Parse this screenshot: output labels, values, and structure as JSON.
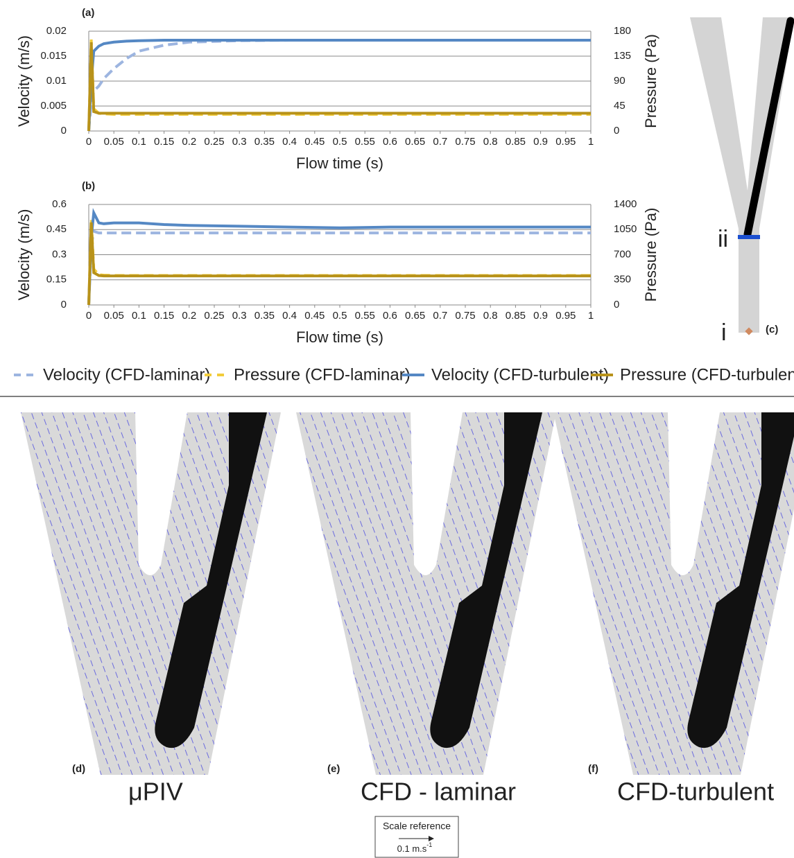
{
  "chart_data": [
    {
      "type": "line",
      "panel_label": "(a)",
      "x_label": "Flow time (s)",
      "y_label": "Velocity (m/s)",
      "y2_label": "Pressure (Pa)",
      "x": [
        0,
        0.005,
        0.01,
        0.02,
        0.03,
        0.05,
        0.075,
        0.1,
        0.15,
        0.2,
        0.3,
        0.4,
        0.5,
        0.6,
        0.7,
        0.8,
        0.9,
        1
      ],
      "xlim": [
        0,
        1
      ],
      "xticks": [
        0,
        0.05,
        0.1,
        0.15,
        0.2,
        0.25,
        0.3,
        0.35,
        0.4,
        0.45,
        0.5,
        0.55,
        0.6,
        0.65,
        0.7,
        0.75,
        0.8,
        0.85,
        0.9,
        0.95,
        1
      ],
      "ylim": [
        0,
        0.02
      ],
      "yticks": [
        0,
        0.005,
        0.01,
        0.015,
        0.02
      ],
      "y2lim": [
        0,
        180
      ],
      "y2ticks": [
        0,
        45,
        90,
        135,
        180
      ],
      "grid": true,
      "series": [
        {
          "name": "Velocity (CFD-laminar)",
          "color": "#9db5e0",
          "line_style": "dashed",
          "values": [
            0,
            0.006,
            0.008,
            0.009,
            0.0105,
            0.0125,
            0.0145,
            0.016,
            0.0172,
            0.0178,
            0.0181,
            0.0182,
            0.0182,
            0.0182,
            0.0182,
            0.0182,
            0.0182,
            0.0182
          ]
        },
        {
          "name": "Pressure (CFD-laminar)",
          "color": "#f2cc3a",
          "line_style": "dashed",
          "axis": "y2",
          "values": [
            0,
            165,
            40,
            32,
            31,
            30,
            30,
            30,
            30,
            30,
            30,
            30,
            30,
            30,
            30,
            30,
            30,
            30
          ]
        },
        {
          "name": "Velocity (CFD-turbulent)",
          "color": "#5588c4",
          "line_style": "solid",
          "values": [
            0,
            0.01,
            0.016,
            0.017,
            0.0175,
            0.0178,
            0.018,
            0.0181,
            0.0182,
            0.0182,
            0.0182,
            0.0182,
            0.0182,
            0.0182,
            0.0182,
            0.0182,
            0.0182,
            0.0182
          ]
        },
        {
          "name": "Pressure (CFD-turbulent)",
          "color": "#b8921a",
          "line_style": "solid",
          "axis": "y2",
          "values": [
            0,
            160,
            35,
            32,
            32,
            32,
            32,
            32,
            32,
            32,
            32,
            32,
            32,
            32,
            32,
            32,
            32,
            32
          ]
        }
      ]
    },
    {
      "type": "line",
      "panel_label": "(b)",
      "x_label": "Flow time (s)",
      "y_label": "Velocity (m/s)",
      "y2_label": "Pressure (Pa)",
      "x": [
        0,
        0.005,
        0.01,
        0.02,
        0.03,
        0.05,
        0.075,
        0.1,
        0.15,
        0.2,
        0.3,
        0.4,
        0.5,
        0.6,
        0.7,
        0.8,
        0.9,
        1
      ],
      "xlim": [
        0,
        1
      ],
      "xticks": [
        0,
        0.05,
        0.1,
        0.15,
        0.2,
        0.25,
        0.3,
        0.35,
        0.4,
        0.45,
        0.5,
        0.55,
        0.6,
        0.65,
        0.7,
        0.75,
        0.8,
        0.85,
        0.9,
        0.95,
        1
      ],
      "ylim": [
        0,
        0.6
      ],
      "yticks": [
        0,
        0.15,
        0.3,
        0.45,
        0.6
      ],
      "y2lim": [
        0,
        1400
      ],
      "y2ticks": [
        0,
        350,
        700,
        1050,
        1400
      ],
      "grid": true,
      "series": [
        {
          "color": "#9db5e0",
          "line_style": "dashed",
          "values": [
            0,
            0.35,
            0.44,
            0.43,
            0.43,
            0.43,
            0.43,
            0.43,
            0.43,
            0.43,
            0.43,
            0.43,
            0.43,
            0.43,
            0.43,
            0.43,
            0.43,
            0.43
          ]
        },
        {
          "color": "#f2cc3a",
          "line_style": "dashed",
          "axis": "y2",
          "values": [
            0,
            1200,
            500,
            420,
            415,
            410,
            410,
            410,
            410,
            410,
            410,
            410,
            410,
            410,
            410,
            410,
            410,
            410
          ]
        },
        {
          "color": "#5588c4",
          "line_style": "solid",
          "values": [
            0,
            0.4,
            0.55,
            0.49,
            0.485,
            0.49,
            0.49,
            0.49,
            0.48,
            0.475,
            0.47,
            0.465,
            0.46,
            0.465,
            0.465,
            0.465,
            0.465,
            0.465
          ]
        },
        {
          "color": "#b8921a",
          "line_style": "solid",
          "axis": "y2",
          "values": [
            0,
            1150,
            450,
            410,
            405,
            405,
            405,
            405,
            405,
            405,
            405,
            405,
            405,
            405,
            405,
            405,
            405,
            405
          ]
        }
      ]
    }
  ],
  "figure": {
    "panel_c": {
      "label": "(c)",
      "marker_ii": "ii",
      "marker_i": "i"
    },
    "panels": [
      {
        "label": "(d)",
        "title": "μPIV"
      },
      {
        "label": "(e)",
        "title": "CFD - laminar"
      },
      {
        "label": "(f)",
        "title": "CFD-turbulent"
      }
    ],
    "scale_reference": {
      "title": "Scale reference",
      "value": "0.1 m.s",
      "exponent": "-1"
    }
  }
}
